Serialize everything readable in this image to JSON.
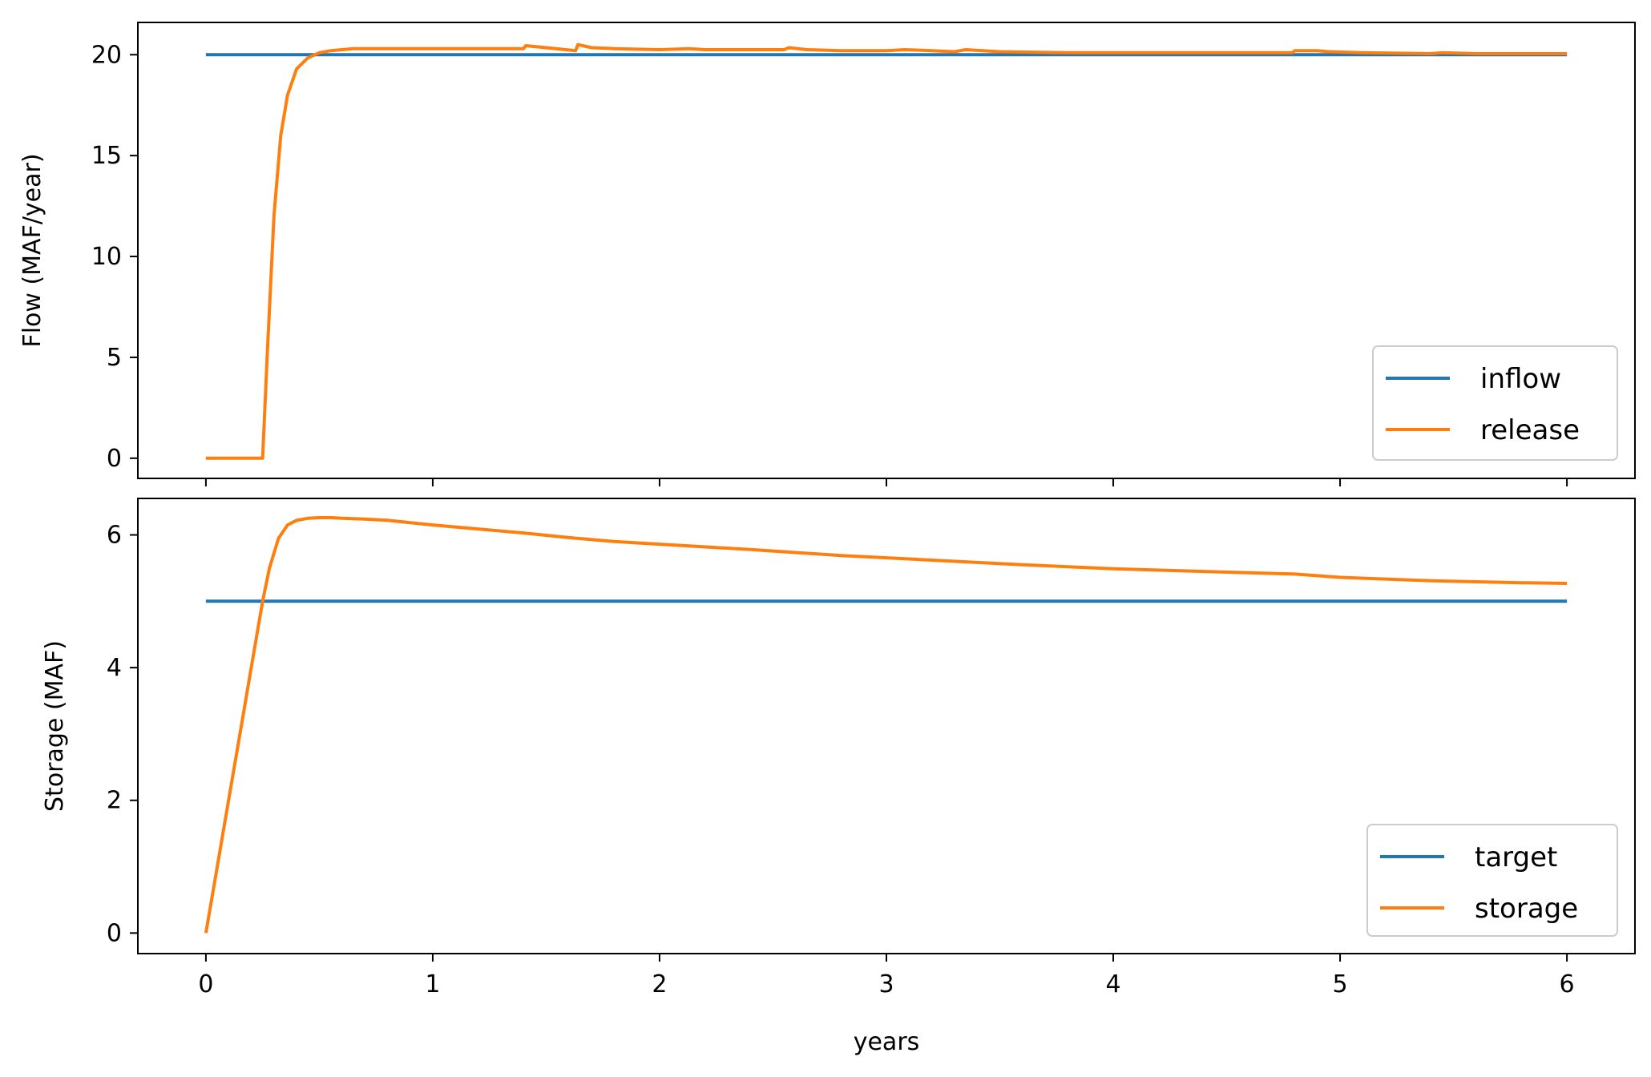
{
  "colors": {
    "blue": "#1f77b4",
    "orange": "#ff7f0e"
  },
  "chart_data": [
    {
      "type": "line",
      "title": "",
      "xlabel": "",
      "ylabel": "Flow (MAF/year)",
      "xlim": [
        -0.3,
        6.3
      ],
      "ylim": [
        -1,
        21.6
      ],
      "xticks": [
        0,
        1,
        2,
        3,
        4,
        5,
        6
      ],
      "yticks": [
        0,
        5,
        10,
        15,
        20
      ],
      "ytick_labels": [
        "0",
        "5",
        "10",
        "15",
        "20"
      ],
      "show_xtick_labels": false,
      "grid": false,
      "legend_position": "lower-right",
      "series": [
        {
          "name": "inflow",
          "color": "#1f77b4",
          "x": [
            0,
            6
          ],
          "y": [
            20,
            20
          ]
        },
        {
          "name": "release",
          "color": "#ff7f0e",
          "x": [
            0,
            0.25,
            0.27,
            0.3,
            0.33,
            0.36,
            0.4,
            0.45,
            0.5,
            0.55,
            0.6,
            0.65,
            0.8,
            1.0,
            1.2,
            1.4,
            1.41,
            1.5,
            1.63,
            1.64,
            1.7,
            1.8,
            2.0,
            2.13,
            2.2,
            2.4,
            2.55,
            2.57,
            2.65,
            2.8,
            3.0,
            3.08,
            3.2,
            3.3,
            3.35,
            3.5,
            3.8,
            4.0,
            4.3,
            4.6,
            4.79,
            4.8,
            4.9,
            4.95,
            5.1,
            5.4,
            5.45,
            5.6,
            5.8,
            6.0
          ],
          "y": [
            0,
            0,
            5,
            12,
            16,
            18,
            19.3,
            19.85,
            20.1,
            20.2,
            20.25,
            20.3,
            20.3,
            20.3,
            20.3,
            20.3,
            20.45,
            20.35,
            20.2,
            20.5,
            20.35,
            20.3,
            20.25,
            20.3,
            20.25,
            20.25,
            20.25,
            20.35,
            20.25,
            20.2,
            20.2,
            20.25,
            20.2,
            20.15,
            20.25,
            20.15,
            20.1,
            20.1,
            20.1,
            20.1,
            20.1,
            20.2,
            20.2,
            20.15,
            20.1,
            20.05,
            20.1,
            20.05,
            20.05,
            20.05
          ]
        }
      ]
    },
    {
      "type": "line",
      "title": "",
      "xlabel": "years",
      "ylabel": "Storage (MAF)",
      "xlim": [
        -0.3,
        6.3
      ],
      "ylim": [
        -0.31,
        6.55
      ],
      "xticks": [
        0,
        1,
        2,
        3,
        4,
        5,
        6
      ],
      "xtick_labels": [
        "0",
        "1",
        "2",
        "3",
        "4",
        "5",
        "6"
      ],
      "yticks": [
        0,
        2,
        4,
        6
      ],
      "ytick_labels": [
        "0",
        "2",
        "4",
        "6"
      ],
      "grid": false,
      "legend_position": "lower-right",
      "series": [
        {
          "name": "target",
          "color": "#1f77b4",
          "x": [
            0,
            6
          ],
          "y": [
            5,
            5
          ]
        },
        {
          "name": "storage",
          "color": "#ff7f0e",
          "x": [
            0,
            0.05,
            0.1,
            0.15,
            0.2,
            0.25,
            0.28,
            0.32,
            0.36,
            0.4,
            0.45,
            0.5,
            0.55,
            0.6,
            0.7,
            0.8,
            1.0,
            1.2,
            1.4,
            1.6,
            1.8,
            2.0,
            2.4,
            2.8,
            3.2,
            3.6,
            4.0,
            4.4,
            4.8,
            5.0,
            5.4,
            5.8,
            6.0
          ],
          "y": [
            0,
            1.0,
            2.0,
            3.0,
            4.0,
            5.0,
            5.5,
            5.95,
            6.15,
            6.22,
            6.25,
            6.26,
            6.26,
            6.25,
            6.24,
            6.22,
            6.15,
            6.09,
            6.03,
            5.96,
            5.9,
            5.86,
            5.78,
            5.69,
            5.62,
            5.55,
            5.49,
            5.45,
            5.41,
            5.36,
            5.31,
            5.28,
            5.27
          ]
        }
      ]
    }
  ]
}
